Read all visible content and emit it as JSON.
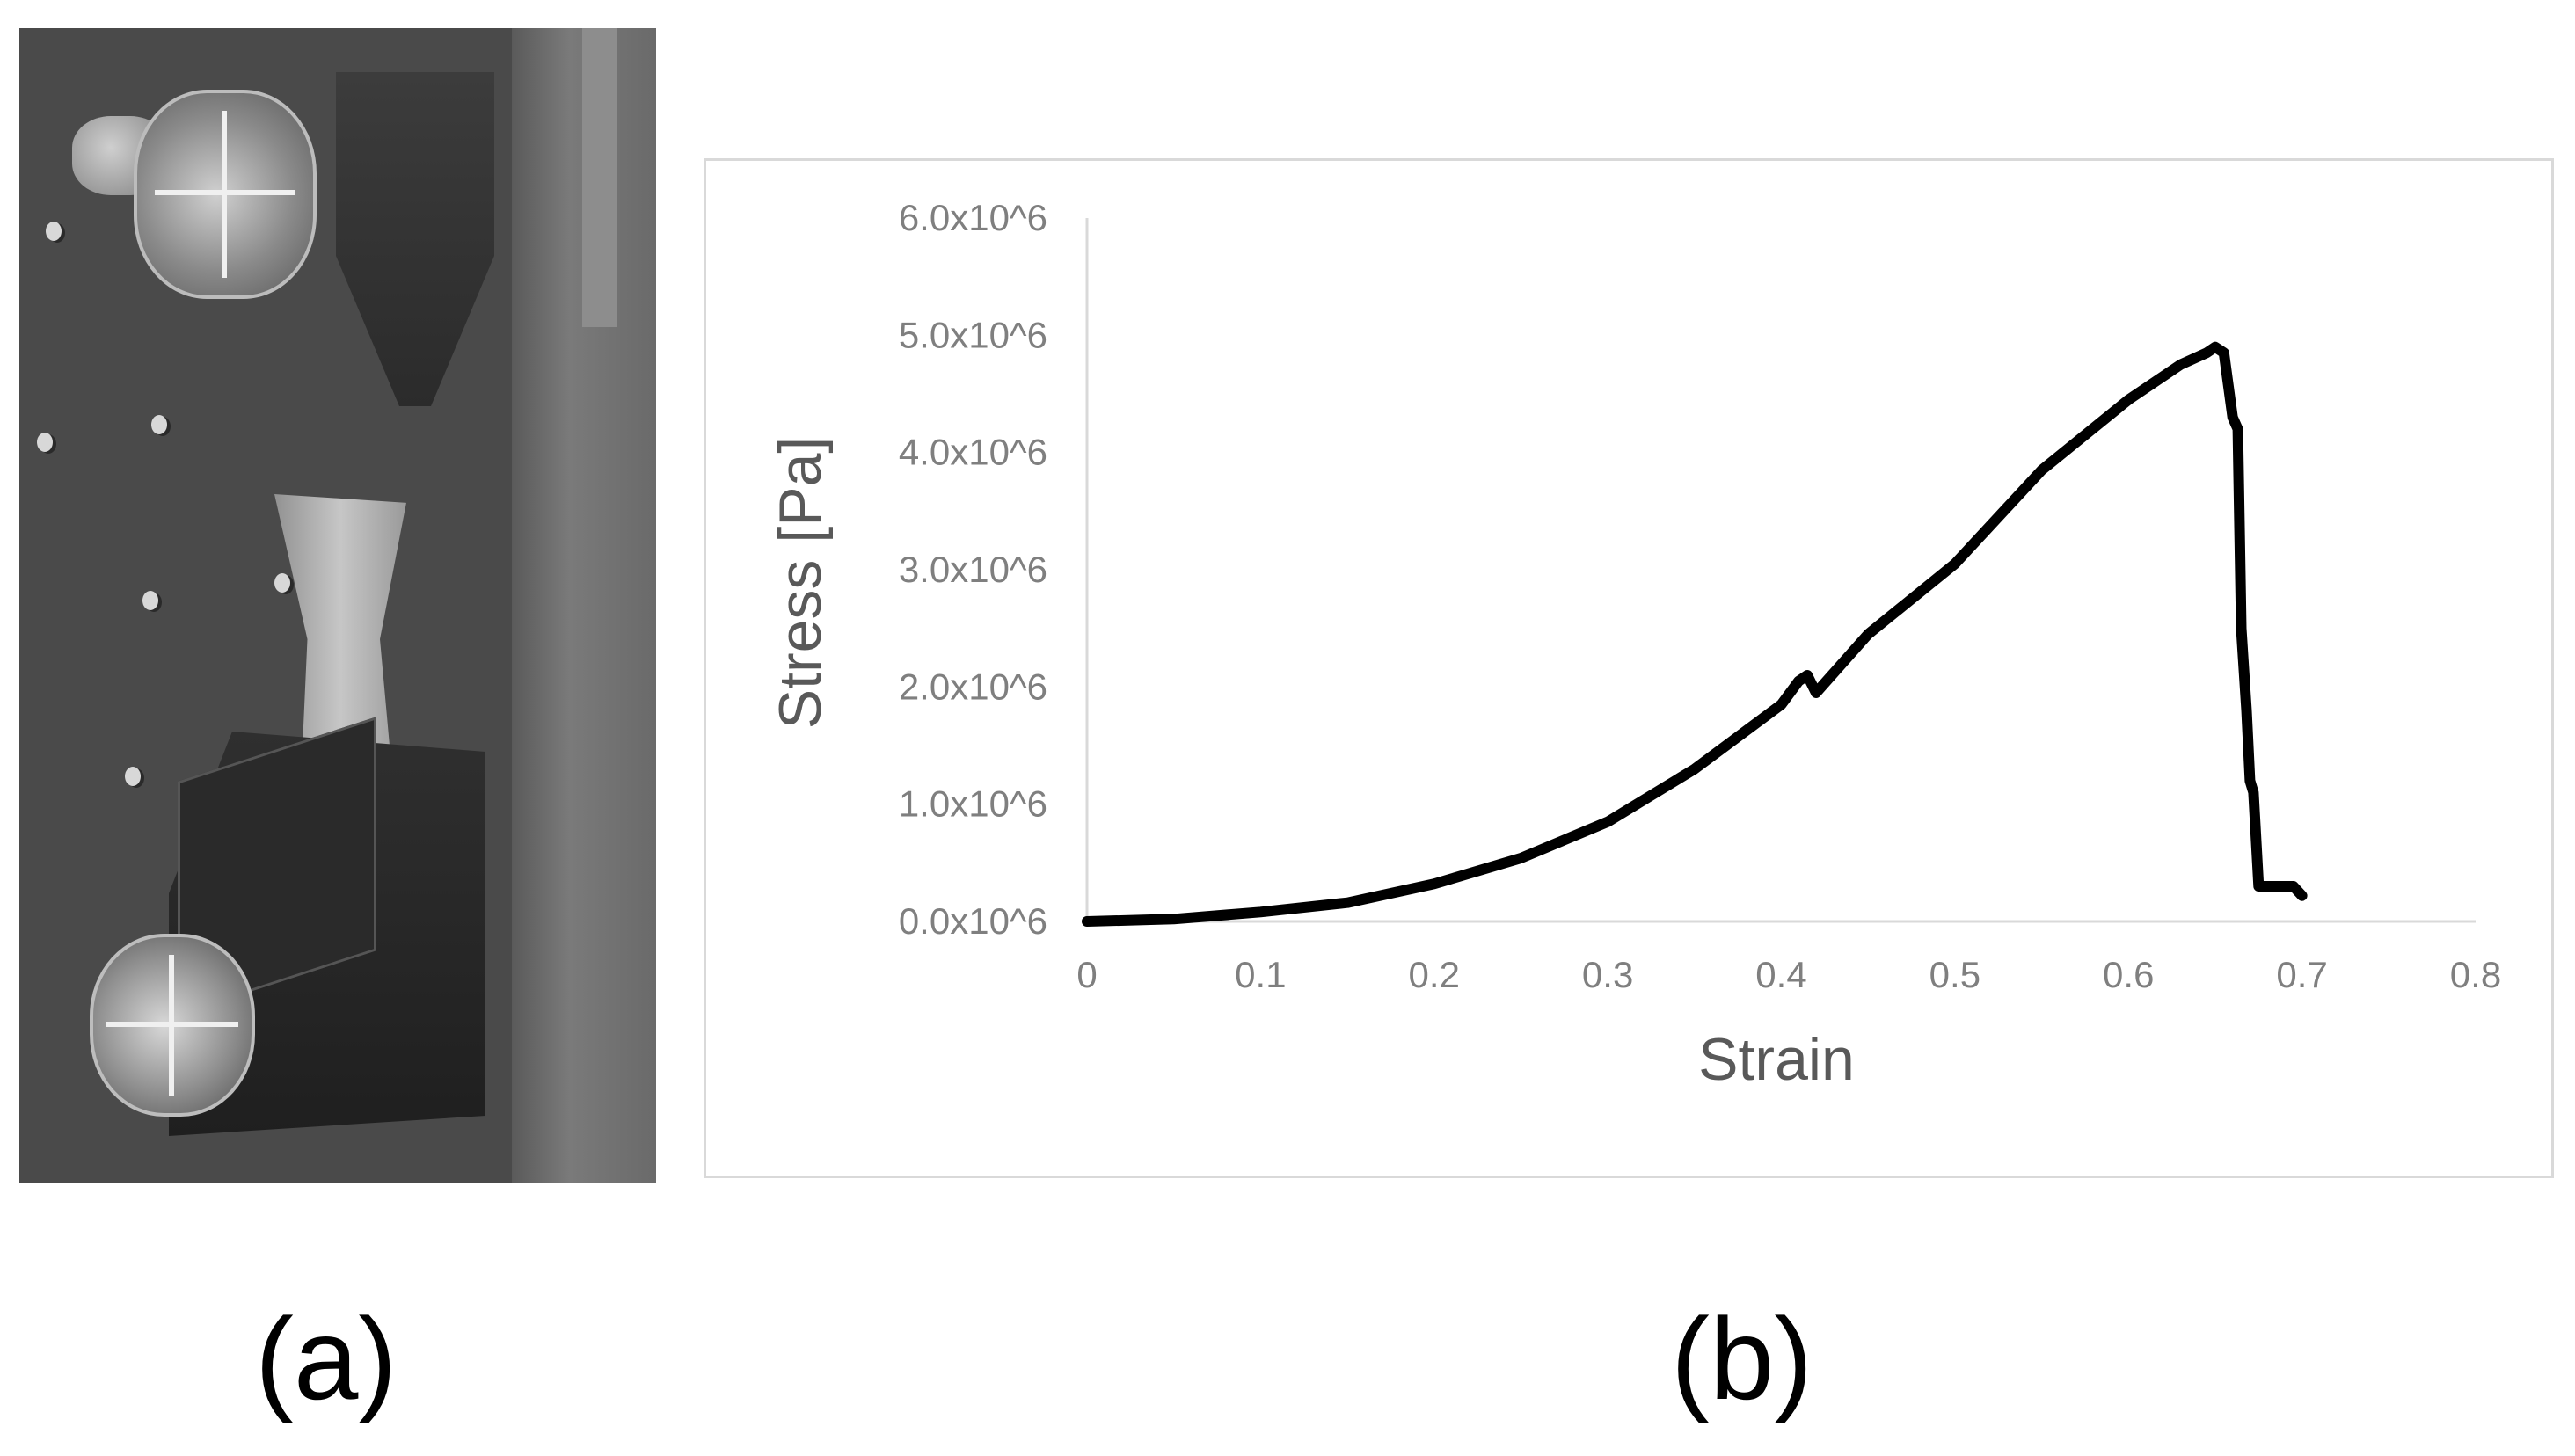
{
  "panels": {
    "a_label": "(a)",
    "b_label": "(b)"
  },
  "photo": {
    "description_icon": "tensile-test-photo"
  },
  "chart_data": {
    "type": "line",
    "xlabel": "Strain",
    "ylabel": "Stress [Pa]",
    "xlim": [
      0,
      0.8
    ],
    "ylim": [
      0,
      6000000
    ],
    "x_ticks": [
      0,
      0.1,
      0.2,
      0.3,
      0.4,
      0.5,
      0.6,
      0.7,
      0.8
    ],
    "x_tick_labels": [
      "0",
      "0.1",
      "0.2",
      "0.3",
      "0.4",
      "0.5",
      "0.6",
      "0.7",
      "0.8"
    ],
    "y_ticks": [
      0,
      1000000,
      2000000,
      3000000,
      4000000,
      5000000,
      6000000
    ],
    "y_tick_labels": [
      "0.0x10^6",
      "1.0x10^6",
      "2.0x10^6",
      "3.0x10^6",
      "4.0x10^6",
      "5.0x10^6",
      "6.0x10^6"
    ],
    "grid": false,
    "line_color": "#000000",
    "axis_color": "#d9d9d9",
    "tick_label_color": "#7f7f7f",
    "axis_title_color": "#595959",
    "series": [
      {
        "x": [
          0,
          0.05,
          0.1,
          0.15,
          0.2,
          0.25,
          0.3,
          0.35,
          0.4,
          0.41,
          0.415,
          0.42,
          0.45,
          0.5,
          0.55,
          0.6,
          0.63,
          0.645,
          0.65,
          0.655,
          0.66,
          0.663,
          0.665,
          0.668,
          0.67,
          0.672,
          0.675,
          0.68,
          0.69,
          0.695,
          0.7
        ],
        "y": [
          0,
          20000,
          80000,
          160000,
          320000,
          540000,
          850000,
          1300000,
          1850000,
          2050000,
          2100000,
          1950000,
          2450000,
          3050000,
          3850000,
          4450000,
          4750000,
          4850000,
          4900000,
          4850000,
          4300000,
          4200000,
          2500000,
          1800000,
          1200000,
          1100000,
          300000,
          300000,
          300000,
          300000,
          220000
        ]
      }
    ]
  }
}
